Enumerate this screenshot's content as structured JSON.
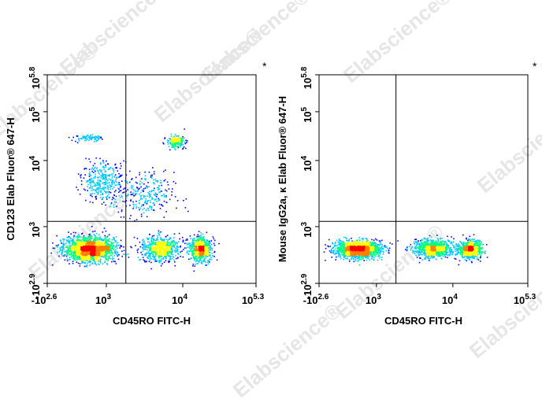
{
  "watermark": "Elabscience®",
  "chart_data": [
    {
      "type": "scatter",
      "subtype": "flow-cytometry-density-dot-plot",
      "xlabel": "CD45RO FITC-H",
      "ylabel": "CD123 Elab Fluor® 647-H",
      "corner_mark": "*",
      "x_ticks": [
        {
          "label": "-10",
          "exp": "2.6",
          "value": -398
        },
        {
          "label": "10",
          "exp": "3",
          "value": 1000
        },
        {
          "label": "10",
          "exp": "4",
          "value": 10000
        },
        {
          "label": "10",
          "exp": "5.3",
          "value": 199526
        }
      ],
      "y_ticks": [
        {
          "label": "-10",
          "exp": "2.9",
          "value": -794
        },
        {
          "label": "10",
          "exp": "3",
          "value": 1000
        },
        {
          "label": "10",
          "exp": "4",
          "value": 10000
        },
        {
          "label": "10",
          "exp": "5",
          "value": 100000
        },
        {
          "label": "10",
          "exp": "5.8",
          "value": 630957
        }
      ],
      "xlim": [
        -398,
        199526
      ],
      "ylim": [
        -794,
        630957
      ],
      "gates": {
        "x": 1800,
        "y": 1200
      },
      "populations": [
        {
          "x": 600,
          "y": 300,
          "spread_x": 0.45,
          "spread_y": 0.35,
          "share": 0.45
        },
        {
          "x": 5000,
          "y": 320,
          "spread_x": 0.25,
          "spread_y": 0.35,
          "share": 0.17
        },
        {
          "x": 20000,
          "y": 300,
          "spread_x": 0.2,
          "spread_y": 0.35,
          "share": 0.16
        },
        {
          "x": 8000,
          "y": 25000,
          "spread_x": 0.12,
          "spread_y": 0.12,
          "share": 0.05
        },
        {
          "x": 900,
          "y": 5000,
          "spread_x": 0.35,
          "spread_y": 0.3,
          "share": 0.08
        },
        {
          "x": 3000,
          "y": 3000,
          "spread_x": 0.4,
          "spread_y": 0.35,
          "share": 0.07
        },
        {
          "x": 600,
          "y": 30000,
          "spread_x": 0.3,
          "spread_y": 0.06,
          "share": 0.02
        }
      ],
      "colorscale": [
        "#0000ff",
        "#00c8ff",
        "#00ff80",
        "#ffff00",
        "#ff8000",
        "#ff0000"
      ]
    },
    {
      "type": "scatter",
      "subtype": "flow-cytometry-density-dot-plot",
      "xlabel": "CD45RO FITC-H",
      "ylabel": "Mouse IgG2a, κ Elab Fluor® 647-H",
      "corner_mark": "*",
      "x_ticks": [
        {
          "label": "-10",
          "exp": "2.6",
          "value": -398
        },
        {
          "label": "10",
          "exp": "3",
          "value": 1000
        },
        {
          "label": "10",
          "exp": "4",
          "value": 10000
        },
        {
          "label": "10",
          "exp": "5.3",
          "value": 199526
        }
      ],
      "y_ticks": [
        {
          "label": "-10",
          "exp": "2.9",
          "value": -794
        },
        {
          "label": "10",
          "exp": "3",
          "value": 1000
        },
        {
          "label": "10",
          "exp": "4",
          "value": 10000
        },
        {
          "label": "10",
          "exp": "5",
          "value": 100000
        },
        {
          "label": "10",
          "exp": "5.8",
          "value": 630957
        }
      ],
      "xlim": [
        -398,
        199526
      ],
      "ylim": [
        -794,
        630957
      ],
      "gates": {
        "x": 1800,
        "y": 1200
      },
      "populations": [
        {
          "x": 550,
          "y": 300,
          "spread_x": 0.4,
          "spread_y": 0.25,
          "share": 0.5
        },
        {
          "x": 5500,
          "y": 320,
          "spread_x": 0.25,
          "spread_y": 0.25,
          "share": 0.27
        },
        {
          "x": 20000,
          "y": 300,
          "spread_x": 0.2,
          "spread_y": 0.25,
          "share": 0.23
        }
      ],
      "colorscale": [
        "#0000ff",
        "#00c8ff",
        "#00ff80",
        "#ffff00",
        "#ff8000",
        "#ff0000"
      ]
    }
  ]
}
